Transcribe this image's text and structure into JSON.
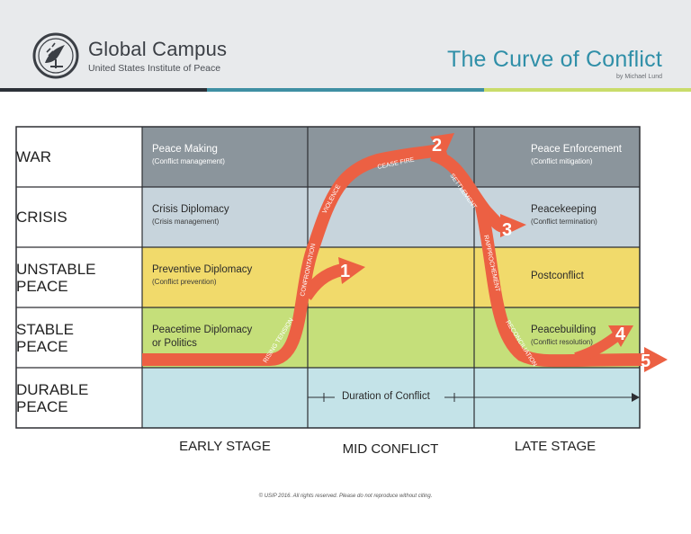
{
  "header": {
    "brand": "Global Campus",
    "brand_sub": "United States Institute of Peace",
    "title": "The Curve of Conflict",
    "author": "by Michael Lund",
    "logo_icon": "usip-dove-logo-icon"
  },
  "colors": {
    "war": "#8b959c",
    "crisis": "#c7d4dc",
    "unstable": "#f1da6b",
    "stable": "#c5df7a",
    "durable": "#c4e3e8",
    "arrow": "#ec6043",
    "title": "#2f8fa8"
  },
  "rows": [
    {
      "label": "WAR",
      "title": "Peace Making",
      "sub": "(Conflict management)",
      "late_title": "Peace Enforcement",
      "late_sub": "(Conflict mitigation)"
    },
    {
      "label": "CRISIS",
      "title": "Crisis Diplomacy",
      "sub": "(Crisis management)",
      "late_title": "Peacekeeping",
      "late_sub": "(Conflict termination)"
    },
    {
      "label": "UNSTABLE PEACE",
      "title": "Preventive Diplomacy",
      "sub": "(Conflict prevention)",
      "late_title": "Postconflict",
      "late_sub": ""
    },
    {
      "label": "STABLE PEACE",
      "title": "Peacetime Diplomacy",
      "title2": "or Politics",
      "late_title": "Peacebuilding",
      "late_sub": "(Conflict resolution)"
    },
    {
      "label": "DURABLE PEACE",
      "duration": "Duration of Conflict"
    }
  ],
  "curve_labels": [
    "RISING TENSION",
    "CONFRONTATION",
    "VIOLENCE",
    "CEASE FIRE",
    "SETTLEMENT",
    "RAPPROCHEMENT",
    "RECONCILIATION"
  ],
  "markers": [
    "1",
    "2",
    "3",
    "4",
    "5"
  ],
  "stages": [
    "EARLY STAGE",
    "MID CONFLICT",
    "LATE STAGE"
  ],
  "footer": "© USIP 2016. All rights reserved. Please do not reproduce without citing."
}
